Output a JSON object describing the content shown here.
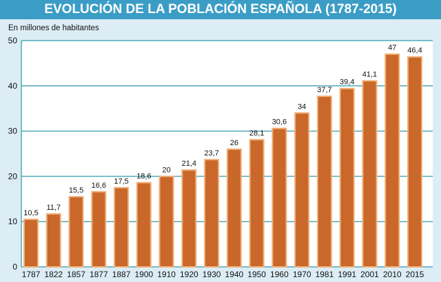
{
  "chart_data": {
    "type": "bar",
    "title": "EVOLUCIÓN DE LA POBLACIÓN ESPAÑOLA (1787-2015)",
    "ylabel": "En millones de habitantes",
    "xlabel": "",
    "categories": [
      "1787",
      "1822",
      "1857",
      "1877",
      "1887",
      "1900",
      "1910",
      "1920",
      "1930",
      "1940",
      "1950",
      "1960",
      "1970",
      "1981",
      "1991",
      "2001",
      "2010",
      "2015"
    ],
    "values": [
      10.5,
      11.7,
      15.5,
      16.6,
      17.5,
      18.6,
      20,
      21.4,
      23.7,
      26,
      28.1,
      30.6,
      34,
      37.7,
      39.4,
      41.1,
      47,
      46.4
    ],
    "data_labels": [
      "10,5",
      "11,7",
      "15,5",
      "16,6",
      "17,5",
      "18,6",
      "20",
      "21,4",
      "23,7",
      "26",
      "28,1",
      "30,6",
      "34",
      "37,7",
      "39,4",
      "41,1",
      "47",
      "46,4"
    ],
    "ylim": [
      0,
      50
    ],
    "yticks": [
      "0",
      "10",
      "20",
      "30",
      "40",
      "50"
    ],
    "grid": true,
    "colors": {
      "bar": "#c9682a",
      "bar_edge": "#f2b07a",
      "grid": "#4fa9b8",
      "title_bg": "#3b9dc6",
      "background": "#dcedf5",
      "plot_bg": "#ffffff"
    }
  }
}
